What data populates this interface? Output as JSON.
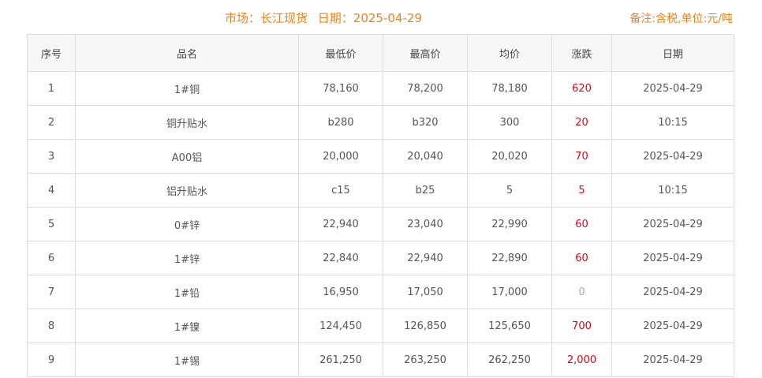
{
  "header": {
    "market_label": "市场：长江现货",
    "date_label": "日期：2025-04-29",
    "note": "备注:含税,单位:元/吨"
  },
  "columns": [
    "序号",
    "品名",
    "最低价",
    "最高价",
    "均价",
    "涨跌",
    "日期"
  ],
  "rows": [
    {
      "no": "1",
      "name": "1#铜",
      "low": "78,160",
      "high": "78,200",
      "avg": "78,180",
      "change": "620",
      "date": "2025-04-29"
    },
    {
      "no": "2",
      "name": "铜升贴水",
      "low": "b280",
      "high": "b320",
      "avg": "300",
      "change": "20",
      "date": "10:15"
    },
    {
      "no": "3",
      "name": "A00铝",
      "low": "20,000",
      "high": "20,040",
      "avg": "20,020",
      "change": "70",
      "date": "2025-04-29"
    },
    {
      "no": "4",
      "name": "铝升贴水",
      "low": "c15",
      "high": "b25",
      "avg": "5",
      "change": "5",
      "date": "10:15"
    },
    {
      "no": "5",
      "name": "0#锌",
      "low": "22,940",
      "high": "23,040",
      "avg": "22,990",
      "change": "60",
      "date": "2025-04-29"
    },
    {
      "no": "6",
      "name": "1#锌",
      "low": "22,840",
      "high": "22,940",
      "avg": "22,890",
      "change": "60",
      "date": "2025-04-29"
    },
    {
      "no": "7",
      "name": "1#铅",
      "low": "16,950",
      "high": "17,050",
      "avg": "17,000",
      "change": "0",
      "date": "2025-04-29"
    },
    {
      "no": "8",
      "name": "1#镍",
      "low": "124,450",
      "high": "126,850",
      "avg": "125,650",
      "change": "700",
      "date": "2025-04-29"
    },
    {
      "no": "9",
      "name": "1#锡",
      "low": "261,250",
      "high": "263,250",
      "avg": "262,250",
      "change": "2,000",
      "date": "2025-04-29"
    }
  ],
  "colors": {
    "accent": "#f0821e",
    "up": "#e60012",
    "flat": "#aaaaaa"
  }
}
